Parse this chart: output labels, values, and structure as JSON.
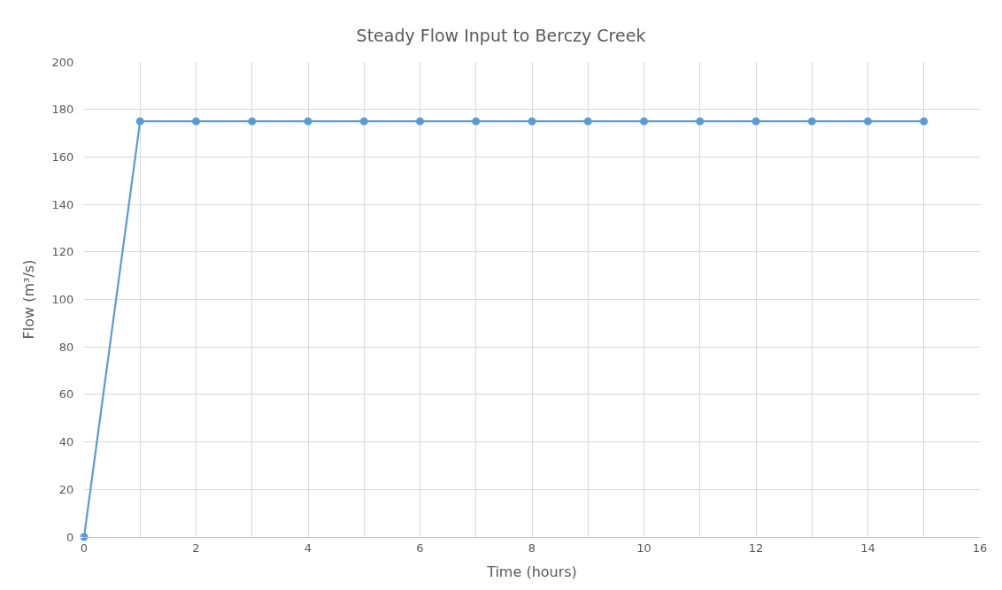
{
  "chart_data": {
    "type": "line",
    "title": "Steady Flow Input to Berczy Creek",
    "xlabel": "Time (hours)",
    "ylabel": "Flow (m³/s)",
    "x": [
      0,
      1,
      2,
      3,
      4,
      5,
      6,
      7,
      8,
      9,
      10,
      11,
      12,
      13,
      14,
      15
    ],
    "series": [
      {
        "color": "#5b9bd5",
        "values": [
          0,
          175,
          175,
          175,
          175,
          175,
          175,
          175,
          175,
          175,
          175,
          175,
          175,
          175,
          175,
          175
        ]
      }
    ],
    "xlim": [
      0,
      16
    ],
    "xticks": [
      0,
      {
        "value": 1,
        "label": null
      },
      2,
      {
        "value": 3,
        "label": null
      },
      4,
      {
        "value": 5,
        "label": null
      },
      6,
      {
        "value": 7,
        "label": null
      },
      8,
      {
        "value": 9,
        "label": null
      },
      10,
      {
        "value": 11,
        "label": null
      },
      12,
      {
        "value": 13,
        "label": null
      },
      14,
      {
        "value": 15,
        "label": null
      },
      16
    ],
    "ylim": [
      0,
      200
    ],
    "yticks": [
      0,
      20,
      40,
      60,
      80,
      100,
      120,
      140,
      160,
      180,
      200
    ],
    "grid": true,
    "marker": "circle",
    "line_style": "solid"
  }
}
